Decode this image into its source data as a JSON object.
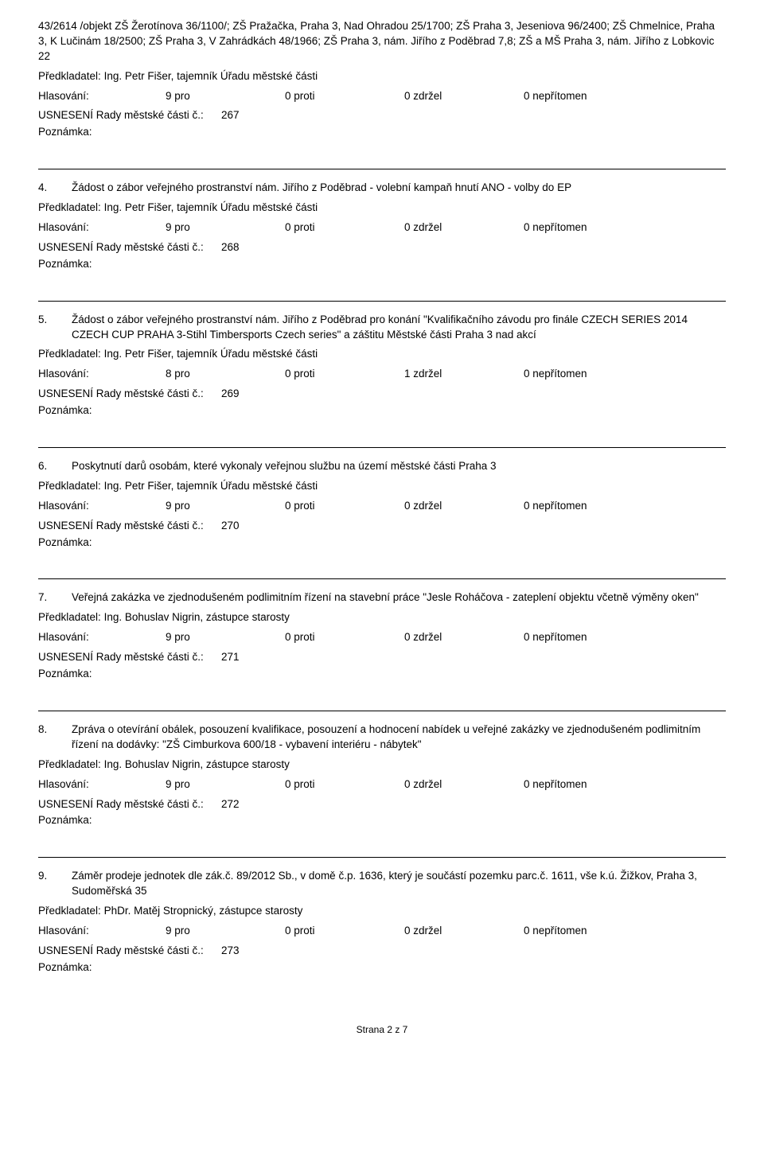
{
  "labels": {
    "presenter_prefix": "Předkladatel: ",
    "vote_label": "Hlasování:",
    "resolution_label": "USNESENÍ Rady městské části č.:",
    "note_label": "Poznámka:"
  },
  "footer": "Strana 2 z 7",
  "intro_continuation": "43/2614 /objekt ZŠ Žerotínova 36/1100/; ZŠ Pražačka, Praha 3, Nad Ohradou 25/1700; ZŠ Praha 3, Jeseniova 96/2400; ZŠ Chmelnice, Praha 3, K Lučinám 18/2500; ZŠ Praha 3, V Zahrádkách 48/1966; ZŠ Praha 3, nám. Jiřího z Poděbrad 7,8; ZŠ a MŠ Praha 3, nám. Jiřího z Lobkovic 22",
  "items": [
    {
      "num": "",
      "title": "",
      "presenter": "Ing. Petr Fišer, tajemník Úřadu městské části",
      "vote": {
        "pro": "9 pro",
        "proti": "0 proti",
        "zdrzel": "0 zdržel",
        "nepritomen": "0 nepřítomen"
      },
      "resolution_no": "267"
    },
    {
      "num": "4.",
      "title": "Žádost o zábor veřejného prostranství nám. Jiřího z Poděbrad - volební kampaň hnutí ANO - volby do EP",
      "presenter": "Ing. Petr Fišer, tajemník Úřadu městské části",
      "vote": {
        "pro": "9 pro",
        "proti": "0 proti",
        "zdrzel": "0 zdržel",
        "nepritomen": "0 nepřítomen"
      },
      "resolution_no": "268"
    },
    {
      "num": "5.",
      "title": "Žádost o zábor veřejného prostranství nám. Jiřího z Poděbrad pro konání \"Kvalifikačního závodu pro finále CZECH SERIES 2014 CZECH CUP PRAHA 3-Stihl Timbersports Czech series\" a záštitu Městské části Praha 3 nad akcí",
      "presenter": "Ing. Petr Fišer, tajemník Úřadu městské části",
      "vote": {
        "pro": "8 pro",
        "proti": "0 proti",
        "zdrzel": "1 zdržel",
        "nepritomen": "0 nepřítomen"
      },
      "resolution_no": "269"
    },
    {
      "num": "6.",
      "title": "Poskytnutí darů osobám, které vykonaly veřejnou službu na území městské části Praha 3",
      "presenter": "Ing. Petr Fišer, tajemník Úřadu městské části",
      "vote": {
        "pro": "9 pro",
        "proti": "0 proti",
        "zdrzel": "0 zdržel",
        "nepritomen": "0 nepřítomen"
      },
      "resolution_no": "270"
    },
    {
      "num": "7.",
      "title": "Veřejná zakázka ve zjednodušeném podlimitním řízení na stavební práce \"Jesle Roháčova - zateplení objektu včetně výměny oken\"",
      "presenter": "Ing. Bohuslav Nigrin, zástupce starosty",
      "vote": {
        "pro": "9 pro",
        "proti": "0 proti",
        "zdrzel": "0 zdržel",
        "nepritomen": "0 nepřítomen"
      },
      "resolution_no": "271"
    },
    {
      "num": "8.",
      "title": "Zpráva o otevírání obálek, posouzení kvalifikace, posouzení a hodnocení nabídek u veřejné zakázky ve zjednodušeném podlimitním řízení na dodávky: \"ZŠ Cimburkova 600/18 - vybavení interiéru - nábytek\"",
      "presenter": "Ing. Bohuslav Nigrin, zástupce starosty",
      "vote": {
        "pro": "9 pro",
        "proti": "0 proti",
        "zdrzel": "0 zdržel",
        "nepritomen": "0 nepřítomen"
      },
      "resolution_no": "272"
    },
    {
      "num": "9.",
      "title": "Záměr prodeje jednotek dle zák.č. 89/2012 Sb., v domě č.p. 1636, který je součástí pozemku parc.č. 1611, vše k.ú. Žižkov, Praha 3, Sudoměřská 35",
      "presenter": "PhDr. Matěj Stropnický, zástupce starosty",
      "vote": {
        "pro": "9 pro",
        "proti": "0 proti",
        "zdrzel": "0 zdržel",
        "nepritomen": "0 nepřítomen"
      },
      "resolution_no": "273"
    }
  ]
}
